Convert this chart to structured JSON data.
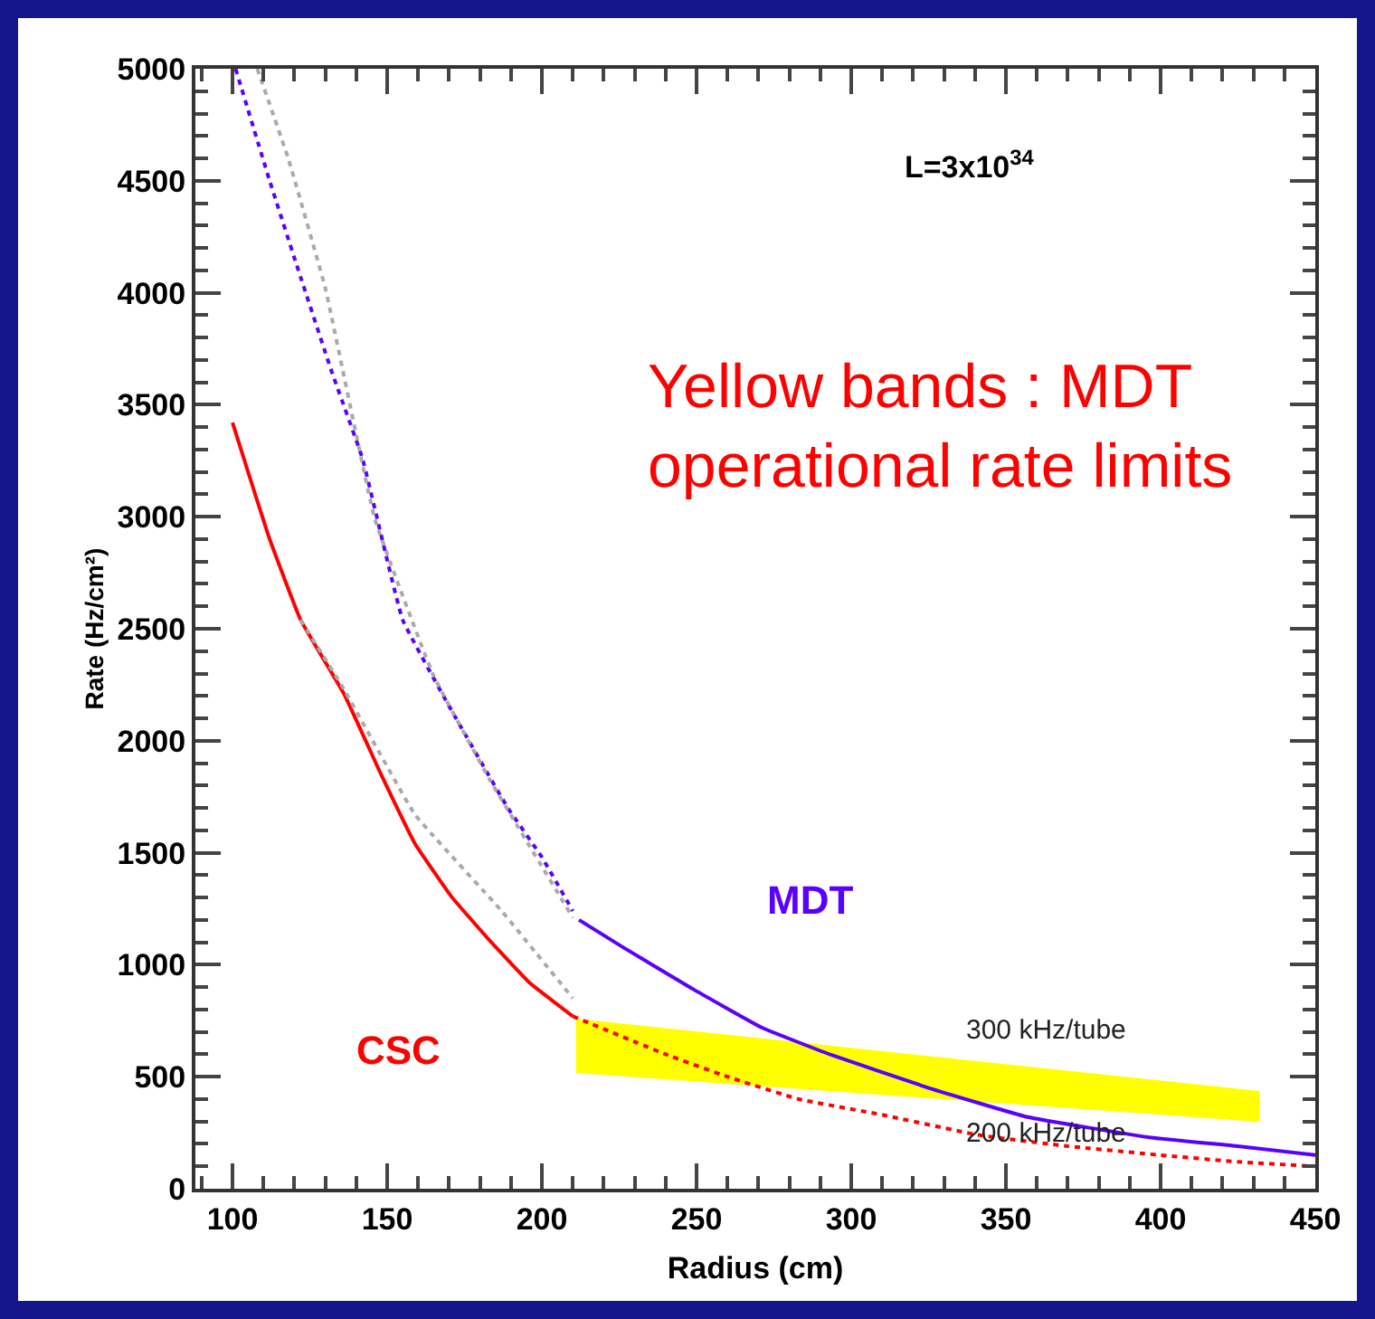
{
  "chart_data": {
    "type": "line",
    "xlabel": "Radius (cm)",
    "ylabel": "Rate (Hz/cm²)",
    "xlim": [
      88,
      450
    ],
    "xticks": [
      100,
      150,
      200,
      250,
      300,
      350,
      400,
      450
    ],
    "ylim": [
      0,
      5000
    ],
    "yticks": [
      0,
      500,
      1000,
      1500,
      2000,
      2500,
      3000,
      3500,
      4000,
      4500,
      5000
    ],
    "grid": false,
    "marker": "none",
    "series": [
      {
        "name": "CSC",
        "color": "#ff0000",
        "line_style": "solid",
        "x": [
          100,
          112,
          122,
          136,
          148,
          159,
          171,
          183,
          196,
          210
        ],
        "values": [
          3420,
          2900,
          2540,
          2210,
          1850,
          1540,
          1300,
          1110,
          920,
          770
        ]
      },
      {
        "color": "#ff0000",
        "line_style": "dotted",
        "x": [
          210,
          240,
          260,
          283,
          310,
          341,
          370,
          400,
          425,
          450
        ],
        "values": [
          770,
          600,
          500,
          400,
          330,
          240,
          190,
          150,
          120,
          100
        ]
      },
      {
        "name": "MDT",
        "color": "#5a00ff",
        "line_style": "solid",
        "x": [
          212,
          226,
          249,
          271,
          293,
          325,
          357,
          396,
          425,
          450
        ],
        "values": [
          1200,
          1080,
          890,
          720,
          600,
          450,
          320,
          230,
          190,
          150
        ]
      },
      {
        "color": "#5a00ff",
        "line_style": "dotted",
        "x": [
          101,
          112,
          122,
          132,
          142,
          155,
          171,
          189,
          200,
          210
        ],
        "values": [
          5000,
          4500,
          4070,
          3650,
          3260,
          2540,
          2130,
          1700,
          1480,
          1240
        ]
      },
      {
        "color": "#aaaaaa",
        "line_style": "dotted",
        "x": [
          108,
          118,
          130,
          146,
          165,
          183,
          210
        ],
        "values": [
          5000,
          4600,
          4020,
          2990,
          2290,
          1830,
          1210
        ]
      },
      {
        "color": "#aaaaaa",
        "line_style": "dotted",
        "x": [
          122,
          136,
          159,
          187,
          210
        ],
        "values": [
          2540,
          2230,
          1670,
          1240,
          850
        ]
      },
      {
        "color": "#ffff00",
        "line_style": "solid",
        "x": [
          211,
          432
        ],
        "values": [
          null,
          null
        ],
        "lower": [
          517,
          299
        ],
        "upper": [
          759,
          436
        ]
      }
    ],
    "annotations": [
      "L=3x10$^{34}$",
      "Yellow bands : MDT operational rate limits",
      "300 kHz/tube",
      "200 kHz/tube"
    ]
  }
}
